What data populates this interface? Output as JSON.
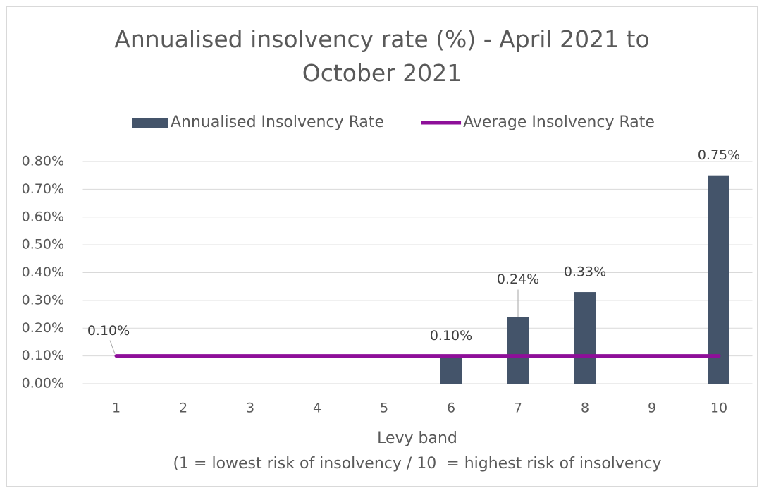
{
  "chart_data": {
    "type": "bar",
    "title": "Annualised insolvency rate (%) - April 2021 to October 2021",
    "x_label": "Levy band",
    "x_note": "(1 = lowest risk of insolvency / 10  = highest risk of insolvency",
    "categories": [
      "1",
      "2",
      "3",
      "4",
      "5",
      "6",
      "7",
      "8",
      "9",
      "10"
    ],
    "series": [
      {
        "name": "Annualised Insolvency Rate",
        "type": "bar",
        "color": "#44546a",
        "values": [
          null,
          null,
          null,
          null,
          null,
          0.1,
          0.24,
          0.33,
          null,
          0.75
        ],
        "value_labels": [
          null,
          null,
          null,
          null,
          null,
          "0.10%",
          "0.24%",
          "0.33%",
          null,
          "0.75%"
        ]
      },
      {
        "name": "Average Insolvency Rate",
        "type": "line",
        "color": "#8e0f99",
        "values": [
          0.1,
          0.1,
          0.1,
          0.1,
          0.1,
          0.1,
          0.1,
          0.1,
          0.1,
          0.1
        ],
        "value_labels": [
          "0.10%",
          null,
          null,
          null,
          null,
          null,
          null,
          null,
          null,
          null
        ]
      }
    ],
    "ylim": [
      0,
      0.8
    ],
    "yticks": [
      {
        "value": 0,
        "label": "0.00%"
      },
      {
        "value": 0.1,
        "label": "0.10%"
      },
      {
        "value": 0.2,
        "label": "0.20%"
      },
      {
        "value": 0.3,
        "label": "0.30%"
      },
      {
        "value": 0.4,
        "label": "0.40%"
      },
      {
        "value": 0.5,
        "label": "0.50%"
      },
      {
        "value": 0.6,
        "label": "0.60%"
      },
      {
        "value": 0.7,
        "label": "0.70%"
      },
      {
        "value": 0.8,
        "label": "0.80%"
      }
    ],
    "grid": true,
    "legend": "top"
  }
}
